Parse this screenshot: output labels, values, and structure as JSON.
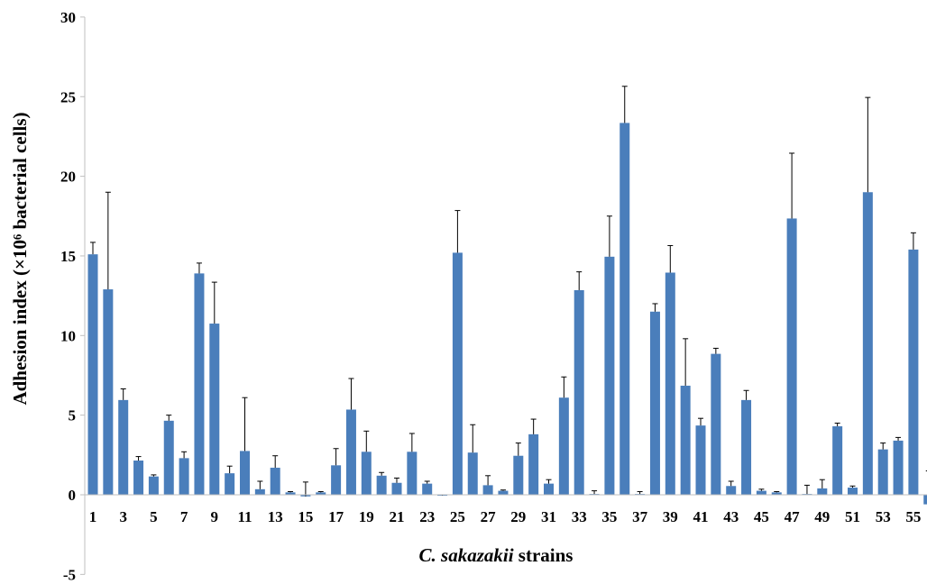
{
  "chart_data": {
    "type": "bar",
    "title": "",
    "xlabel_italic": "C. sakazakii",
    "xlabel_rest": " strains",
    "ylabel": "Adhesion index (×10⁶ bacterial cells)",
    "ylim": [
      -5,
      30
    ],
    "yticks": [
      -5,
      0,
      5,
      10,
      15,
      20,
      25,
      30
    ],
    "grid": false,
    "legend": "none",
    "bar_color": "#4a7ebb",
    "error_bar_color": "#000000",
    "categories": [
      "1",
      "2",
      "3",
      "4",
      "5",
      "6",
      "7",
      "8",
      "9",
      "10",
      "11",
      "12",
      "13",
      "14",
      "15",
      "16",
      "17",
      "18",
      "19",
      "20",
      "21",
      "22",
      "23",
      "24",
      "25",
      "26",
      "27",
      "28",
      "29",
      "30",
      "31",
      "32",
      "33",
      "34",
      "35",
      "36",
      "37",
      "38",
      "39",
      "40",
      "41",
      "42",
      "43",
      "44",
      "45",
      "46",
      "47",
      "48",
      "49",
      "50",
      "51",
      "52",
      "53",
      "54",
      "55",
      "56"
    ],
    "category_labels_shown": [
      "1",
      "3",
      "5",
      "7",
      "9",
      "11",
      "13",
      "15",
      "17",
      "19",
      "21",
      "23",
      "25",
      "27",
      "29",
      "31",
      "33",
      "35",
      "37",
      "39",
      "41",
      "43",
      "45",
      "47",
      "49",
      "51",
      "53",
      "55"
    ],
    "values": [
      15.1,
      12.9,
      5.95,
      2.15,
      1.15,
      4.65,
      2.3,
      13.9,
      10.75,
      1.35,
      2.75,
      0.35,
      1.7,
      0.15,
      -0.1,
      0.15,
      1.85,
      5.35,
      2.7,
      1.2,
      0.75,
      2.7,
      0.7,
      -0.05,
      15.2,
      2.65,
      0.6,
      0.25,
      2.45,
      3.8,
      0.7,
      6.1,
      12.85,
      0.05,
      14.95,
      23.35,
      0.05,
      11.5,
      13.95,
      6.85,
      4.35,
      8.85,
      0.55,
      5.95,
      0.25,
      0.15,
      17.35,
      0.05,
      0.4,
      4.3,
      0.45,
      19.0,
      2.85,
      3.4,
      15.4,
      -0.6
    ],
    "errors": [
      0.75,
      6.1,
      0.7,
      0.25,
      0.1,
      0.35,
      0.4,
      0.65,
      2.6,
      0.45,
      3.35,
      0.5,
      0.75,
      0.05,
      0.9,
      0.05,
      1.05,
      1.95,
      1.3,
      0.2,
      0.3,
      1.15,
      0.15,
      0.05,
      2.65,
      1.75,
      0.6,
      0.05,
      0.8,
      0.95,
      0.25,
      1.3,
      1.15,
      0.2,
      2.55,
      2.3,
      0.15,
      0.5,
      1.7,
      2.95,
      0.45,
      0.35,
      0.3,
      0.6,
      0.1,
      0.05,
      4.1,
      0.55,
      0.55,
      0.2,
      0.1,
      5.95,
      0.4,
      0.2,
      1.05,
      2.1
    ]
  }
}
